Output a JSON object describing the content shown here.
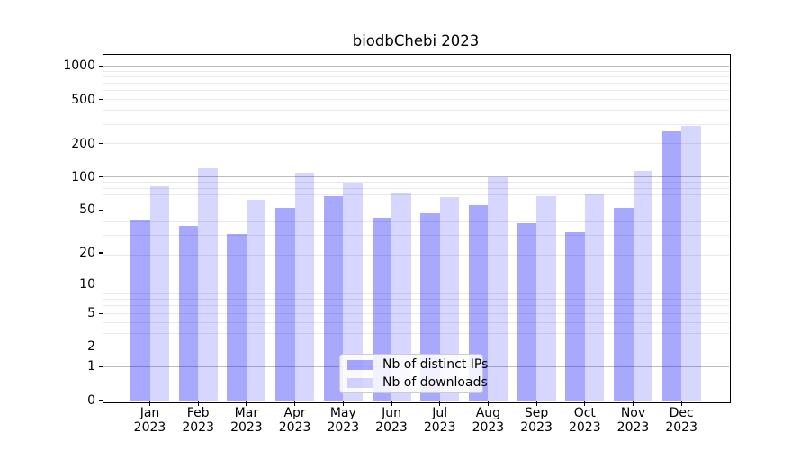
{
  "chart_data": {
    "type": "bar",
    "title": "biodbChebi 2023",
    "categories": [
      "Jan",
      "Feb",
      "Mar",
      "Apr",
      "May",
      "Jun",
      "Jul",
      "Aug",
      "Sep",
      "Oct",
      "Nov",
      "Dec"
    ],
    "x_year": "2023",
    "series": [
      {
        "name": "Nb of distinct IPs",
        "color": "rgba(0,0,255,0.34)",
        "values": [
          40,
          36,
          30,
          52,
          67,
          42,
          47,
          55,
          38,
          31,
          52,
          258
        ]
      },
      {
        "name": "Nb of downloads",
        "color": "rgba(0,0,255,0.16)",
        "values": [
          82,
          120,
          62,
          108,
          88,
          71,
          66,
          100,
          67,
          69,
          113,
          288
        ]
      }
    ],
    "y_ticks": [
      0,
      1,
      2,
      5,
      10,
      20,
      50,
      100,
      200,
      500,
      1000
    ],
    "y_scale": "log10(value+1)",
    "ylim": [
      0,
      1280
    ],
    "grid": true,
    "grid_major_at": [
      1,
      10,
      100,
      1000
    ],
    "legend": {
      "position": "lower-center"
    },
    "colors": {
      "bar_base": "#0000ff",
      "grid_major": "#bdbdbd",
      "grid_minor": "#e9e9e9",
      "axis": "#000000",
      "background": "#ffffff"
    }
  }
}
